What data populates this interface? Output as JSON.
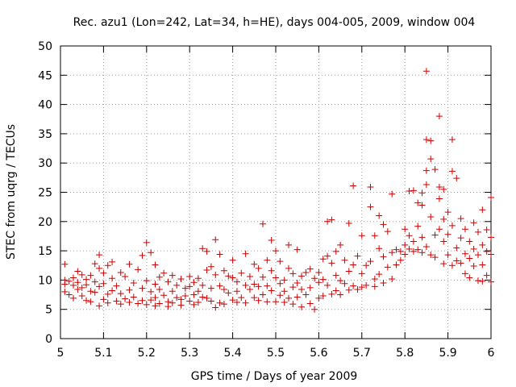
{
  "chart_data": {
    "type": "scatter",
    "title": "Rec. azu1 (Lon=242, Lat=34, h=HE), days 004-005, 2009, window 004",
    "xlabel": "GPS time / Days of year 2009",
    "ylabel": "STEC from uqrg / TECUs",
    "xlim": [
      5,
      6
    ],
    "ylim": [
      0,
      50
    ],
    "xticks": [
      5,
      5.1,
      5.2,
      5.3,
      5.4,
      5.5,
      5.6,
      5.7,
      5.8,
      5.9,
      6
    ],
    "xtick_labels": [
      "5",
      "5.1",
      "5.2",
      "5.3",
      "5.4",
      "5.5",
      "5.6",
      "5.7",
      "5.8",
      "5.9",
      "6"
    ],
    "yticks": [
      0,
      5,
      10,
      15,
      20,
      25,
      30,
      35,
      40,
      45,
      50
    ],
    "ytick_labels": [
      "0",
      "5",
      "10",
      "15",
      "20",
      "25",
      "30",
      "35",
      "40",
      "45",
      "50"
    ],
    "grid": true,
    "marker": "+",
    "marker_color": "#cc0000",
    "points": [
      [
        5.01,
        12.7
      ],
      [
        5.01,
        10.0
      ],
      [
        5.01,
        9.3
      ],
      [
        5.01,
        8.0
      ],
      [
        5.02,
        9.8
      ],
      [
        5.02,
        7.5
      ],
      [
        5.03,
        10.4
      ],
      [
        5.03,
        9.1
      ],
      [
        5.03,
        6.9
      ],
      [
        5.04,
        11.5
      ],
      [
        5.04,
        9.6
      ],
      [
        5.04,
        8.4
      ],
      [
        5.05,
        10.9
      ],
      [
        5.05,
        8.7
      ],
      [
        5.05,
        7.3
      ],
      [
        5.06,
        10.1
      ],
      [
        5.06,
        9.2
      ],
      [
        5.06,
        6.5
      ],
      [
        5.07,
        10.8
      ],
      [
        5.07,
        8.1
      ],
      [
        5.07,
        6.3
      ],
      [
        5.08,
        12.8
      ],
      [
        5.08,
        9.7
      ],
      [
        5.08,
        7.9
      ],
      [
        5.09,
        14.3
      ],
      [
        5.09,
        12.0
      ],
      [
        5.09,
        8.9
      ],
      [
        5.09,
        5.6
      ],
      [
        5.1,
        11.2
      ],
      [
        5.1,
        9.4
      ],
      [
        5.1,
        6.7
      ],
      [
        5.11,
        12.5
      ],
      [
        5.11,
        7.6
      ],
      [
        5.11,
        6.1
      ],
      [
        5.12,
        13.1
      ],
      [
        5.12,
        10.3
      ],
      [
        5.12,
        8.2
      ],
      [
        5.13,
        9.0
      ],
      [
        5.13,
        6.4
      ],
      [
        5.14,
        11.3
      ],
      [
        5.14,
        7.7
      ],
      [
        5.14,
        5.9
      ],
      [
        5.15,
        10.6
      ],
      [
        5.15,
        6.8
      ],
      [
        5.16,
        12.7
      ],
      [
        5.16,
        8.3
      ],
      [
        5.16,
        6.2
      ],
      [
        5.17,
        9.5
      ],
      [
        5.17,
        7.1
      ],
      [
        5.18,
        11.8
      ],
      [
        5.18,
        6.0
      ],
      [
        5.19,
        14.2
      ],
      [
        5.19,
        8.6
      ],
      [
        5.19,
        6.5
      ],
      [
        5.2,
        16.4
      ],
      [
        5.2,
        9.9
      ],
      [
        5.2,
        5.8
      ],
      [
        5.21,
        14.7
      ],
      [
        5.21,
        8.0
      ],
      [
        5.21,
        6.6
      ],
      [
        5.22,
        12.6
      ],
      [
        5.22,
        9.3
      ],
      [
        5.22,
        7.0
      ],
      [
        5.22,
        5.6
      ],
      [
        5.23,
        10.5
      ],
      [
        5.23,
        8.4
      ],
      [
        5.23,
        6.0
      ],
      [
        5.24,
        11.2
      ],
      [
        5.24,
        7.4
      ],
      [
        5.25,
        9.7
      ],
      [
        5.25,
        6.3
      ],
      [
        5.25,
        5.5
      ],
      [
        5.26,
        10.8
      ],
      [
        5.26,
        8.1
      ],
      [
        5.26,
        6.1
      ],
      [
        5.27,
        9.1
      ],
      [
        5.27,
        7.0
      ],
      [
        5.28,
        10.2
      ],
      [
        5.28,
        6.7
      ],
      [
        5.28,
        5.7
      ],
      [
        5.29,
        8.6
      ],
      [
        5.29,
        7.3
      ],
      [
        5.3,
        10.6
      ],
      [
        5.3,
        8.9
      ],
      [
        5.3,
        6.4
      ],
      [
        5.31,
        9.6
      ],
      [
        5.31,
        7.5
      ],
      [
        5.31,
        5.8
      ],
      [
        5.32,
        10.3
      ],
      [
        5.32,
        8.1
      ],
      [
        5.32,
        6.2
      ],
      [
        5.33,
        15.4
      ],
      [
        5.33,
        9.1
      ],
      [
        5.33,
        7.1
      ],
      [
        5.34,
        14.9
      ],
      [
        5.34,
        11.7
      ],
      [
        5.34,
        6.9
      ],
      [
        5.35,
        12.3
      ],
      [
        5.35,
        8.6
      ],
      [
        5.35,
        6.4
      ],
      [
        5.36,
        16.9
      ],
      [
        5.36,
        10.9
      ],
      [
        5.36,
        5.3
      ],
      [
        5.37,
        14.4
      ],
      [
        5.37,
        9.0
      ],
      [
        5.37,
        6.1
      ],
      [
        5.38,
        11.6
      ],
      [
        5.38,
        8.4
      ],
      [
        5.38,
        5.9
      ],
      [
        5.39,
        10.7
      ],
      [
        5.39,
        7.8
      ],
      [
        5.4,
        13.4
      ],
      [
        5.4,
        10.4
      ],
      [
        5.4,
        6.6
      ],
      [
        5.41,
        9.7
      ],
      [
        5.41,
        8.1
      ],
      [
        5.41,
        6.2
      ],
      [
        5.42,
        11.2
      ],
      [
        5.42,
        7.0
      ],
      [
        5.43,
        14.5
      ],
      [
        5.43,
        9.1
      ],
      [
        5.43,
        6.1
      ],
      [
        5.44,
        10.6
      ],
      [
        5.44,
        8.4
      ],
      [
        5.45,
        12.7
      ],
      [
        5.45,
        9.3
      ],
      [
        5.45,
        7.0
      ],
      [
        5.46,
        12.0
      ],
      [
        5.46,
        8.9
      ],
      [
        5.46,
        6.5
      ],
      [
        5.47,
        19.6
      ],
      [
        5.47,
        10.5
      ],
      [
        5.47,
        7.5
      ],
      [
        5.48,
        13.4
      ],
      [
        5.48,
        9.0
      ],
      [
        5.48,
        6.3
      ],
      [
        5.49,
        16.8
      ],
      [
        5.49,
        11.6
      ],
      [
        5.49,
        8.2
      ],
      [
        5.5,
        15.0
      ],
      [
        5.5,
        10.4
      ],
      [
        5.5,
        6.3
      ],
      [
        5.51,
        13.2
      ],
      [
        5.51,
        9.4
      ],
      [
        5.51,
        7.4
      ],
      [
        5.52,
        10.0
      ],
      [
        5.52,
        8.1
      ],
      [
        5.52,
        6.2
      ],
      [
        5.53,
        16.0
      ],
      [
        5.53,
        12.0
      ],
      [
        5.53,
        6.9
      ],
      [
        5.54,
        11.1
      ],
      [
        5.54,
        8.8
      ],
      [
        5.54,
        5.9
      ],
      [
        5.55,
        15.2
      ],
      [
        5.55,
        9.5
      ],
      [
        5.55,
        7.1
      ],
      [
        5.56,
        10.7
      ],
      [
        5.56,
        8.4
      ],
      [
        5.56,
        5.4
      ],
      [
        5.57,
        11.3
      ],
      [
        5.57,
        7.5
      ],
      [
        5.58,
        11.9
      ],
      [
        5.58,
        8.7
      ],
      [
        5.58,
        6.0
      ],
      [
        5.59,
        10.3
      ],
      [
        5.59,
        5.0
      ],
      [
        5.6,
        11.3
      ],
      [
        5.6,
        9.6
      ],
      [
        5.6,
        6.9
      ],
      [
        5.61,
        13.6
      ],
      [
        5.61,
        10.1
      ],
      [
        5.61,
        7.3
      ],
      [
        5.62,
        20.0
      ],
      [
        5.62,
        14.1
      ],
      [
        5.62,
        9.1
      ],
      [
        5.63,
        20.3
      ],
      [
        5.63,
        12.9
      ],
      [
        5.63,
        7.6
      ],
      [
        5.64,
        14.9
      ],
      [
        5.64,
        10.8
      ],
      [
        5.64,
        8.2
      ],
      [
        5.65,
        16.0
      ],
      [
        5.65,
        9.9
      ],
      [
        5.65,
        7.5
      ],
      [
        5.66,
        13.4
      ],
      [
        5.66,
        9.4
      ],
      [
        5.67,
        19.7
      ],
      [
        5.67,
        11.5
      ],
      [
        5.67,
        8.3
      ],
      [
        5.68,
        26.1
      ],
      [
        5.68,
        12.6
      ],
      [
        5.68,
        9.0
      ],
      [
        5.69,
        14.1
      ],
      [
        5.69,
        8.4
      ],
      [
        5.7,
        17.6
      ],
      [
        5.7,
        11.1
      ],
      [
        5.7,
        8.8
      ],
      [
        5.71,
        12.5
      ],
      [
        5.71,
        9.1
      ],
      [
        5.72,
        25.9
      ],
      [
        5.72,
        22.5
      ],
      [
        5.72,
        13.2
      ],
      [
        5.73,
        17.6
      ],
      [
        5.73,
        10.2
      ],
      [
        5.73,
        8.9
      ],
      [
        5.74,
        21.0
      ],
      [
        5.74,
        15.4
      ],
      [
        5.74,
        11.0
      ],
      [
        5.75,
        19.5
      ],
      [
        5.75,
        14.0
      ],
      [
        5.75,
        9.5
      ],
      [
        5.76,
        18.3
      ],
      [
        5.76,
        12.2
      ],
      [
        5.77,
        24.7
      ],
      [
        5.77,
        14.7
      ],
      [
        5.77,
        10.2
      ],
      [
        5.78,
        15.2
      ],
      [
        5.78,
        12.6
      ],
      [
        5.79,
        14.9
      ],
      [
        5.79,
        13.4
      ],
      [
        5.8,
        18.7
      ],
      [
        5.8,
        16.0
      ],
      [
        5.8,
        14.4
      ],
      [
        5.81,
        25.2
      ],
      [
        5.81,
        17.6
      ],
      [
        5.81,
        15.3
      ],
      [
        5.82,
        25.3
      ],
      [
        5.82,
        16.6
      ],
      [
        5.82,
        14.9
      ],
      [
        5.83,
        23.2
      ],
      [
        5.83,
        19.2
      ],
      [
        5.83,
        15.2
      ],
      [
        5.84,
        24.9
      ],
      [
        5.84,
        22.8
      ],
      [
        5.84,
        17.3
      ],
      [
        5.84,
        14.7
      ],
      [
        5.85,
        45.7
      ],
      [
        5.85,
        34.0
      ],
      [
        5.85,
        28.7
      ],
      [
        5.85,
        26.3
      ],
      [
        5.85,
        15.7
      ],
      [
        5.86,
        33.8
      ],
      [
        5.86,
        30.7
      ],
      [
        5.86,
        20.8
      ],
      [
        5.86,
        14.3
      ],
      [
        5.87,
        28.9
      ],
      [
        5.87,
        17.7
      ],
      [
        5.87,
        13.9
      ],
      [
        5.88,
        38.0
      ],
      [
        5.88,
        25.9
      ],
      [
        5.88,
        23.9
      ],
      [
        5.88,
        18.7
      ],
      [
        5.89,
        25.5
      ],
      [
        5.89,
        20.4
      ],
      [
        5.89,
        16.6
      ],
      [
        5.89,
        12.8
      ],
      [
        5.9,
        21.6
      ],
      [
        5.9,
        17.8
      ],
      [
        5.9,
        14.3
      ],
      [
        5.91,
        34.0
      ],
      [
        5.91,
        28.6
      ],
      [
        5.91,
        19.3
      ],
      [
        5.91,
        12.5
      ],
      [
        5.92,
        27.4
      ],
      [
        5.92,
        15.5
      ],
      [
        5.92,
        13.3
      ],
      [
        5.93,
        20.5
      ],
      [
        5.93,
        17.2
      ],
      [
        5.93,
        12.9
      ],
      [
        5.94,
        18.7
      ],
      [
        5.94,
        14.5
      ],
      [
        5.94,
        11.1
      ],
      [
        5.95,
        16.6
      ],
      [
        5.95,
        13.7
      ],
      [
        5.95,
        10.4
      ],
      [
        5.96,
        19.8
      ],
      [
        5.96,
        15.3
      ],
      [
        5.96,
        12.4
      ],
      [
        5.97,
        18.2
      ],
      [
        5.97,
        14.3
      ],
      [
        5.97,
        9.9
      ],
      [
        5.98,
        22.0
      ],
      [
        5.98,
        16.0
      ],
      [
        5.98,
        12.6
      ],
      [
        5.98,
        9.8
      ],
      [
        5.99,
        18.6
      ],
      [
        5.99,
        14.9
      ],
      [
        5.99,
        10.8
      ],
      [
        6.0,
        24.1
      ],
      [
        6.0,
        17.3
      ],
      [
        6.0,
        14.4
      ],
      [
        6.0,
        9.7
      ]
    ]
  }
}
